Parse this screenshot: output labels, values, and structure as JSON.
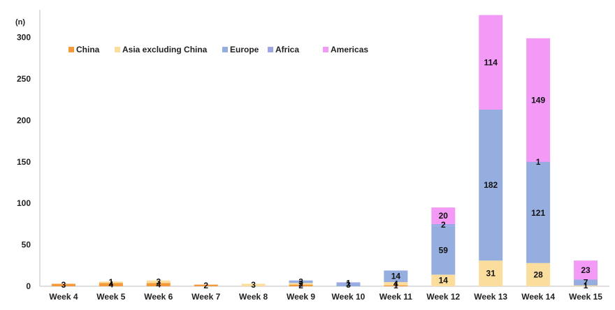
{
  "chart_data": {
    "type": "bar",
    "stacked": true,
    "y_unit_label": "(n)",
    "title": "",
    "xlabel": "",
    "ylabel": "",
    "ylim": [
      0,
      330
    ],
    "yticks": [
      0,
      50,
      100,
      150,
      200,
      250,
      300
    ],
    "grid": false,
    "legend_position": "top-left",
    "categories": [
      "Week 4",
      "Week 5",
      "Week 6",
      "Week 7",
      "Week 8",
      "Week 9",
      "Week 10",
      "Week 11",
      "Week 12",
      "Week 13",
      "Week 14",
      "Week 15"
    ],
    "series": [
      {
        "name": "China",
        "color": "#f59a3a",
        "values": [
          3,
          4,
          4,
          2,
          0,
          2,
          0,
          1,
          0,
          0,
          0,
          0
        ]
      },
      {
        "name": "Asia excluding China",
        "color": "#fbdd9d",
        "values": [
          0,
          1,
          3,
          0,
          3,
          2,
          0,
          4,
          14,
          31,
          28,
          1
        ]
      },
      {
        "name": "Europe",
        "color": "#95aedf",
        "values": [
          0,
          0,
          0,
          0,
          0,
          3,
          3,
          14,
          59,
          182,
          121,
          7
        ]
      },
      {
        "name": "Africa",
        "color": "#9aa6e6",
        "values": [
          0,
          0,
          0,
          0,
          0,
          0,
          1,
          0,
          2,
          0,
          1,
          0
        ]
      },
      {
        "name": "Americas",
        "color": "#f29af5",
        "values": [
          0,
          0,
          0,
          0,
          0,
          0,
          0,
          0,
          20,
          114,
          149,
          23
        ]
      }
    ]
  }
}
